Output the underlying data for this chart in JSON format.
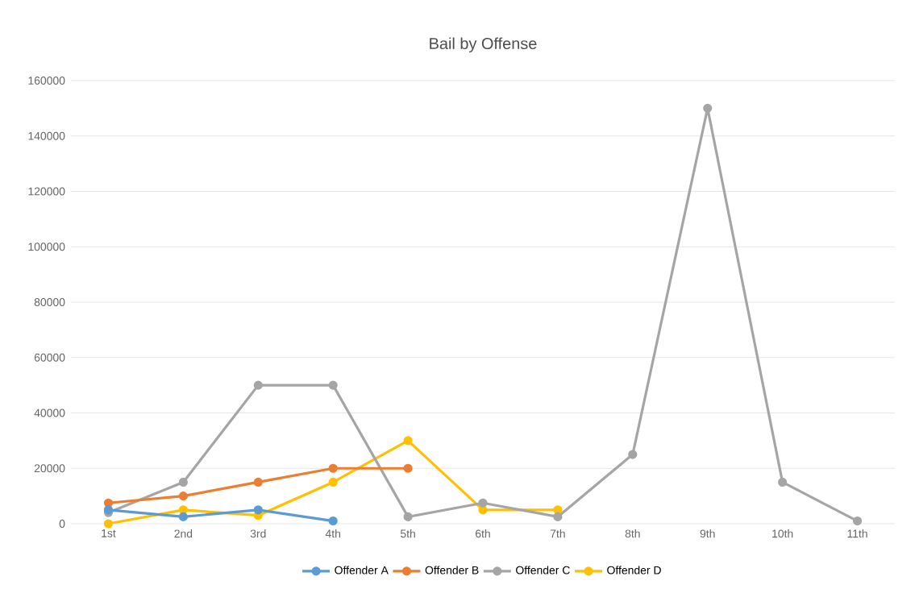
{
  "chart_data": {
    "type": "line",
    "title": "Bail by Offense",
    "categories": [
      "1st",
      "2nd",
      "3rd",
      "4th",
      "5th",
      "6th",
      "7th",
      "8th",
      "9th",
      "10th",
      "11th"
    ],
    "series": [
      {
        "name": "Offender A",
        "color": "#5b9bd5",
        "values": [
          5000,
          2500,
          5000,
          1000,
          null,
          null,
          null,
          null,
          null,
          null,
          null
        ]
      },
      {
        "name": "Offender B",
        "color": "#ed7d31",
        "values": [
          7500,
          10000,
          15000,
          20000,
          20000,
          null,
          null,
          null,
          null,
          null,
          null
        ]
      },
      {
        "name": "Offender C",
        "color": "#a5a5a5",
        "values": [
          4000,
          15000,
          50000,
          50000,
          2500,
          7500,
          2500,
          25000,
          150000,
          15000,
          1000
        ]
      },
      {
        "name": "Offender D",
        "color": "#ffc000",
        "values": [
          0,
          5000,
          3000,
          15000,
          30000,
          5000,
          5000,
          null,
          null,
          null,
          null
        ]
      }
    ],
    "ylim": [
      0,
      160000
    ],
    "yticks": [
      0,
      20000,
      40000,
      60000,
      80000,
      100000,
      120000,
      140000,
      160000
    ],
    "grid": "y",
    "legend": "bottom",
    "marker": "circle",
    "line_style": "solid"
  }
}
